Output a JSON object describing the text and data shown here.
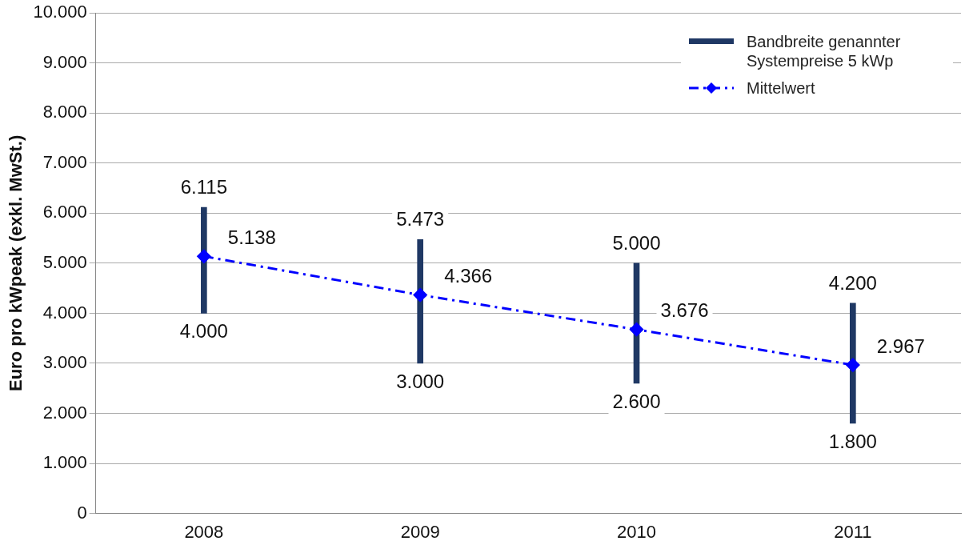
{
  "chart_data": {
    "type": "bar",
    "ylabel": "Euro pro kWpeak (exkl. MwSt.)",
    "categories": [
      "2008",
      "2009",
      "2010",
      "2011"
    ],
    "series": [
      {
        "name": "Bandbreite genannter Systempreise 5 kWp",
        "color": "#1f3864",
        "base": [
          4000,
          3000,
          2600,
          1800
        ],
        "values": [
          2115,
          2473,
          2400,
          2400
        ]
      },
      {
        "name": "Mittelwert",
        "type": "line",
        "color": "#0000ff",
        "marker": "diamond",
        "line_style": "dashed",
        "values": [
          5138,
          4366,
          3676,
          2967
        ],
        "value_labels": [
          "5.138",
          "4.366",
          "3.676",
          "2.967"
        ]
      }
    ],
    "annotations": [
      {
        "text": "6.115",
        "x": "2008",
        "y": 6115
      },
      {
        "text": "4.000",
        "x": "2008",
        "y": 4000
      },
      {
        "text": "5.473",
        "x": "2009",
        "y": 5473
      },
      {
        "text": "3.000",
        "x": "2009",
        "y": 3000
      },
      {
        "text": "5.000",
        "x": "2010",
        "y": 5000
      },
      {
        "text": "2.600",
        "x": "2010",
        "y": 2600
      },
      {
        "text": "4.200",
        "x": "2011",
        "y": 4200
      },
      {
        "text": "1.800",
        "x": "2011",
        "y": 1800
      }
    ],
    "ylim": [
      0,
      10000
    ],
    "yticks": [
      {
        "value": 0,
        "label": "0"
      },
      {
        "value": 1000,
        "label": "1.000"
      },
      {
        "value": 2000,
        "label": "2.000"
      },
      {
        "value": 3000,
        "label": "3.000"
      },
      {
        "value": 4000,
        "label": "4.000"
      },
      {
        "value": 5000,
        "label": "5.000"
      },
      {
        "value": 6000,
        "label": "6.000"
      },
      {
        "value": 7000,
        "label": "7.000"
      },
      {
        "value": 8000,
        "label": "8.000"
      },
      {
        "value": 9000,
        "label": "9.000"
      },
      {
        "value": 10000,
        "label": "10.000"
      }
    ],
    "grid": "y",
    "legend": "top right"
  }
}
